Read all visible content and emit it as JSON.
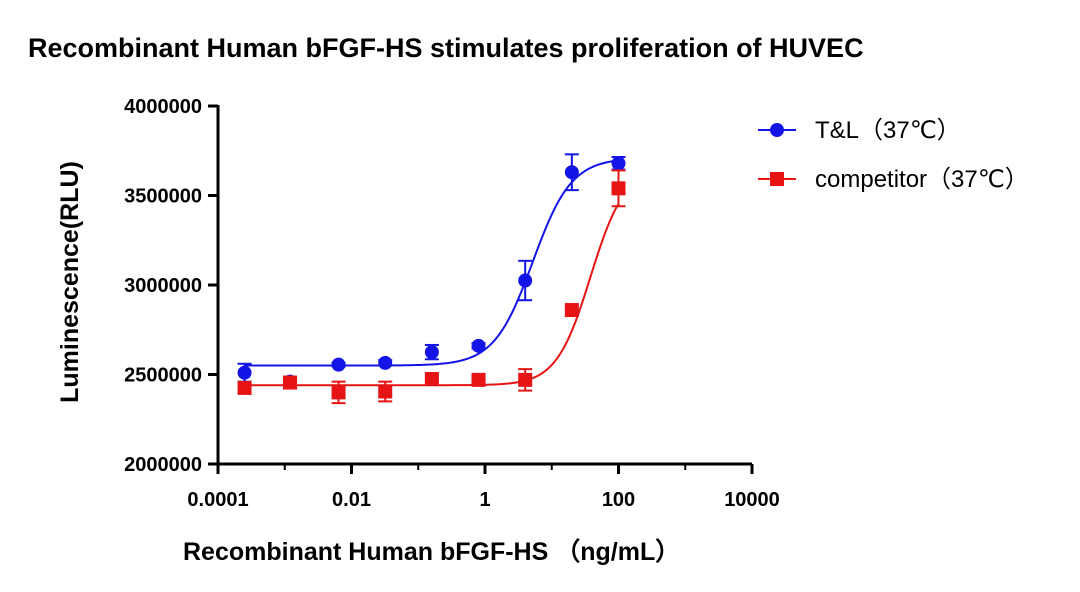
{
  "chart_data": {
    "type": "scatter",
    "title": "Recombinant Human bFGF-HS stimulates proliferation of HUVEC",
    "xlabel": "Recombinant Human bFGF-HS （ng/mL）",
    "ylabel": "Luminescence(RLU)",
    "xscale": "log",
    "xlim": [
      0.0001,
      10000
    ],
    "ylim": [
      2000000,
      4000000
    ],
    "xticks": [
      {
        "value": 0.0001,
        "label": "0.0001"
      },
      {
        "value": 0.01,
        "label": "0.01"
      },
      {
        "value": 1,
        "label": "1"
      },
      {
        "value": 100,
        "label": "100"
      },
      {
        "value": 10000,
        "label": "10000"
      }
    ],
    "yticks": [
      {
        "value": 2000000,
        "label": "2000000"
      },
      {
        "value": 2500000,
        "label": "2500000"
      },
      {
        "value": 3000000,
        "label": "3000000"
      },
      {
        "value": 3500000,
        "label": "3500000"
      },
      {
        "value": 4000000,
        "label": "4000000"
      }
    ],
    "legend_position": "top-right",
    "series": [
      {
        "name": "T&L（37℃）",
        "color": "#1414e6",
        "marker": "circle",
        "x": [
          0.00025,
          0.0012,
          0.0064,
          0.032,
          0.16,
          0.8,
          4,
          20,
          100
        ],
        "y": [
          2510000,
          2460000,
          2555000,
          2565000,
          2625000,
          2660000,
          3025000,
          3630000,
          3680000
        ],
        "err": [
          50000,
          10000,
          10000,
          15000,
          40000,
          15000,
          110000,
          100000,
          35000
        ],
        "fit": {
          "bottom": 2550000,
          "top": 3710000,
          "ec50": 5.2,
          "hill": 1.5
        }
      },
      {
        "name": "competitor（37℃）",
        "color": "#e61414",
        "marker": "square",
        "x": [
          0.00025,
          0.0012,
          0.0064,
          0.032,
          0.16,
          0.8,
          4,
          20,
          100
        ],
        "y": [
          2425000,
          2455000,
          2400000,
          2405000,
          2475000,
          2470000,
          2470000,
          2860000,
          3540000
        ],
        "err": [
          25000,
          25000,
          60000,
          55000,
          15000,
          15000,
          60000,
          30000,
          100000
        ],
        "fit": {
          "bottom": 2440000,
          "top": 3650000,
          "ec50": 38,
          "hill": 1.7
        }
      }
    ]
  }
}
